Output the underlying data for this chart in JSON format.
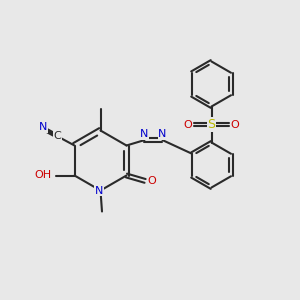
{
  "bg_color": "#e8e8e8",
  "bond_color": "#2a2a2a",
  "bond_lw": 1.5,
  "dbo": 0.05,
  "N_color": "#0000cc",
  "O_color": "#cc0000",
  "S_color": "#bbbb00",
  "fs": 8.0,
  "xlim": [
    0,
    10
  ],
  "ylim": [
    0,
    10
  ]
}
